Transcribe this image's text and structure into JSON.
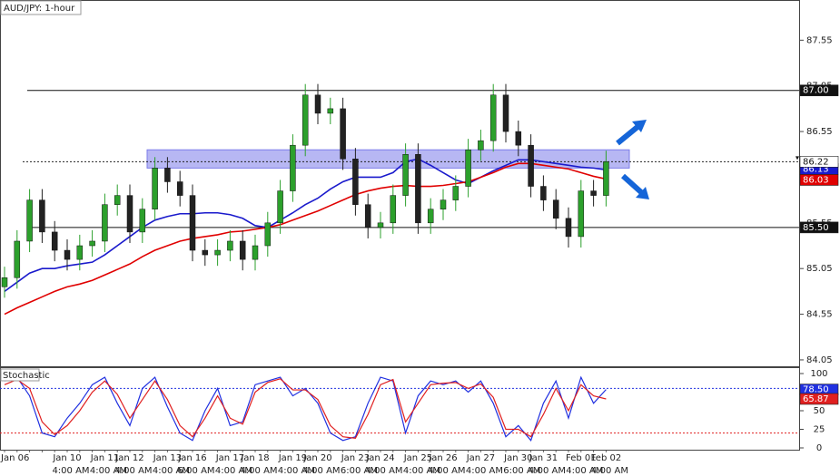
{
  "chart_data": {
    "type": "candlestick",
    "title": "AUD/JPY: 1-hour",
    "categories": [
      "Jan 06",
      null,
      null,
      null,
      null,
      "Jan 10",
      null,
      null,
      "Jan 11",
      null,
      "Jan 12",
      null,
      null,
      "Jan 13",
      null,
      "Jan 16",
      null,
      null,
      "Jan 17",
      null,
      "Jan 18",
      null,
      null,
      "Jan 19",
      null,
      "Jan 20",
      null,
      null,
      "Jan 23",
      null,
      "Jan 24",
      null,
      null,
      "Jan 25",
      null,
      "Jan 26",
      null,
      null,
      "Jan 27",
      null,
      null,
      "Jan 30",
      null,
      "Jan 31",
      null,
      null,
      "Feb 01",
      null,
      "Feb 02"
    ],
    "time_labels": [
      null,
      null,
      null,
      null,
      null,
      "4:00 AM",
      null,
      null,
      "4:00 AM",
      null,
      "4:00 AM",
      null,
      null,
      "4:00 AM",
      null,
      "6:00 AM",
      null,
      null,
      "4:00 AM",
      null,
      "4:00 AM",
      null,
      null,
      "4:00 AM",
      null,
      "4:00 AM",
      null,
      null,
      "6:00 AM",
      null,
      "4:00 AM",
      null,
      null,
      "4:00 AM",
      null,
      "4:00 AM",
      null,
      null,
      "4:00 AM",
      null,
      null,
      "6:00 AM",
      null,
      "4:00 AM",
      null,
      null,
      "4:00 AM",
      null,
      "4:00 AM"
    ],
    "open": [
      84.85,
      84.95,
      85.35,
      85.8,
      85.45,
      85.25,
      85.15,
      85.3,
      85.35,
      85.75,
      85.85,
      85.45,
      85.7,
      86.15,
      86.0,
      85.85,
      85.25,
      85.2,
      85.25,
      85.35,
      85.15,
      85.3,
      85.55,
      85.9,
      86.4,
      86.95,
      86.75,
      86.8,
      86.25,
      85.75,
      85.5,
      85.55,
      85.85,
      86.3,
      85.55,
      85.7,
      85.8,
      85.95,
      86.35,
      86.45,
      86.95,
      86.55,
      86.4,
      85.95,
      85.8,
      85.6,
      85.4,
      85.9,
      85.85
    ],
    "high": [
      85.07,
      85.47,
      85.92,
      85.92,
      85.57,
      85.37,
      85.42,
      85.47,
      85.87,
      85.97,
      85.97,
      85.82,
      86.27,
      86.27,
      86.12,
      85.97,
      85.37,
      85.37,
      85.47,
      85.47,
      85.42,
      85.67,
      86.02,
      86.52,
      87.07,
      87.07,
      86.92,
      86.92,
      86.37,
      85.87,
      85.67,
      85.97,
      86.42,
      86.42,
      85.82,
      85.92,
      86.07,
      86.47,
      86.57,
      87.07,
      87.07,
      86.67,
      86.52,
      86.07,
      85.92,
      85.72,
      86.02,
      86.02,
      86.34
    ],
    "low": [
      84.73,
      84.83,
      85.23,
      85.33,
      85.13,
      85.03,
      85.03,
      85.18,
      85.23,
      85.63,
      85.33,
      85.33,
      85.58,
      85.88,
      85.73,
      85.13,
      85.08,
      85.08,
      85.13,
      85.03,
      85.03,
      85.18,
      85.43,
      85.78,
      86.28,
      86.63,
      86.63,
      86.13,
      85.63,
      85.38,
      85.38,
      85.43,
      85.73,
      85.43,
      85.43,
      85.58,
      85.68,
      85.83,
      86.23,
      86.33,
      86.43,
      86.28,
      85.83,
      85.68,
      85.48,
      85.28,
      85.28,
      85.73,
      85.73
    ],
    "close": [
      84.95,
      85.35,
      85.8,
      85.45,
      85.25,
      85.15,
      85.3,
      85.35,
      85.75,
      85.85,
      85.45,
      85.7,
      86.15,
      86.0,
      85.85,
      85.25,
      85.2,
      85.25,
      85.35,
      85.15,
      85.3,
      85.55,
      85.9,
      86.4,
      86.95,
      86.75,
      86.8,
      86.25,
      85.75,
      85.5,
      85.55,
      85.85,
      86.3,
      85.55,
      85.7,
      85.8,
      85.95,
      86.35,
      86.45,
      86.95,
      86.55,
      86.4,
      85.95,
      85.8,
      85.6,
      85.4,
      85.9,
      85.85,
      86.22
    ],
    "up_color": "#2ca02c",
    "down_color": "#222222",
    "ylim": [
      83.97,
      87.99
    ],
    "yticks": [
      84.05,
      84.55,
      85.05,
      85.55,
      86.05,
      86.55,
      87.05,
      87.55
    ],
    "levels": [
      {
        "value": 87,
        "label": "87.00"
      },
      {
        "value": 85.5,
        "label": "85.50"
      }
    ],
    "zone": [
      86.15,
      86.35
    ],
    "zone_color": "#7b7bea",
    "moving_averages": [
      {
        "color": "#1a1acc",
        "values": [
          84.8,
          84.9,
          85.0,
          85.05,
          85.05,
          85.08,
          85.1,
          85.12,
          85.2,
          85.3,
          85.4,
          85.5,
          85.58,
          85.62,
          85.65,
          85.65,
          85.66,
          85.66,
          85.64,
          85.6,
          85.52,
          85.5,
          85.58,
          85.66,
          85.75,
          85.82,
          85.92,
          86.0,
          86.05,
          86.05,
          86.05,
          86.1,
          86.22,
          86.25,
          86.18,
          86.1,
          86.02,
          85.98,
          86.05,
          86.12,
          86.18,
          86.24,
          86.24,
          86.22,
          86.2,
          86.18,
          86.16,
          86.15,
          86.13
        ]
      },
      {
        "color": "#e00000",
        "values": [
          84.55,
          84.62,
          84.68,
          84.74,
          84.8,
          84.85,
          84.88,
          84.92,
          84.98,
          85.04,
          85.1,
          85.18,
          85.25,
          85.3,
          85.35,
          85.38,
          85.4,
          85.42,
          85.45,
          85.46,
          85.48,
          85.5,
          85.53,
          85.58,
          85.63,
          85.68,
          85.74,
          85.8,
          85.86,
          85.9,
          85.93,
          85.95,
          85.96,
          85.95,
          85.95,
          85.96,
          85.98,
          86.0,
          86.05,
          86.1,
          86.16,
          86.2,
          86.2,
          86.18,
          86.16,
          86.14,
          86.1,
          86.06,
          86.03
        ]
      }
    ],
    "stochastic": {
      "title": "Stochastic",
      "ylim": [
        0,
        100
      ],
      "yticks": [
        0,
        25,
        50,
        75,
        100
      ],
      "levels": [
        {
          "value": 80,
          "color": "#2030e0"
        },
        {
          "value": 20,
          "color": "#e02020"
        }
      ],
      "lines": [
        {
          "color": "#2030e0",
          "values": [
            90,
            95,
            70,
            20,
            15,
            40,
            60,
            85,
            95,
            60,
            30,
            80,
            95,
            55,
            20,
            10,
            50,
            80,
            30,
            35,
            85,
            90,
            95,
            70,
            80,
            60,
            20,
            10,
            15,
            60,
            95,
            90,
            20,
            70,
            90,
            85,
            90,
            75,
            90,
            60,
            15,
            30,
            10,
            60,
            90,
            40,
            95,
            60,
            78.5
          ],
          "value_labels": [
            null,
            null,
            null,
            null,
            null,
            null,
            null,
            null,
            null,
            null,
            null,
            null,
            null,
            null,
            null,
            null,
            null,
            null,
            null,
            null,
            null,
            null,
            null,
            null,
            null,
            null,
            null,
            null,
            null,
            null,
            null,
            null,
            null,
            null,
            null,
            null,
            null,
            null,
            null,
            null,
            null,
            null,
            null,
            null,
            null,
            null,
            null,
            null,
            "78.50"
          ]
        },
        {
          "color": "#e02020",
          "values": [
            85,
            92,
            80,
            35,
            18,
            30,
            50,
            75,
            90,
            72,
            40,
            65,
            90,
            65,
            30,
            15,
            40,
            70,
            40,
            32,
            75,
            88,
            93,
            78,
            78,
            65,
            30,
            15,
            13,
            45,
            85,
            92,
            35,
            60,
            85,
            87,
            88,
            80,
            86,
            68,
            25,
            25,
            15,
            45,
            80,
            50,
            85,
            70,
            65.87
          ]
        }
      ]
    }
  }
}
